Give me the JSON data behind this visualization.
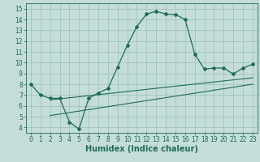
{
  "xlabel": "Humidex (Indice chaleur)",
  "xlim": [
    -0.5,
    23.5
  ],
  "ylim": [
    3.5,
    15.5
  ],
  "xticks": [
    0,
    1,
    2,
    3,
    4,
    5,
    6,
    7,
    8,
    9,
    10,
    11,
    12,
    13,
    14,
    15,
    16,
    17,
    18,
    19,
    20,
    21,
    22,
    23
  ],
  "yticks": [
    4,
    5,
    6,
    7,
    8,
    9,
    10,
    11,
    12,
    13,
    14,
    15
  ],
  "bg_color": "#c5ddd8",
  "grid_color": "#9dc4be",
  "line_color": "#1e6b5e",
  "curve1_x": [
    0,
    1,
    2,
    3,
    4,
    5,
    6,
    7,
    8,
    9,
    10,
    11,
    12,
    13,
    14,
    15,
    16,
    17,
    18,
    19,
    20,
    21,
    22,
    23
  ],
  "curve1_y": [
    8.0,
    7.0,
    6.7,
    6.7,
    4.5,
    3.85,
    6.7,
    7.2,
    7.6,
    9.6,
    11.6,
    13.35,
    14.5,
    14.75,
    14.5,
    14.45,
    14.0,
    10.8,
    9.4,
    9.5,
    9.5,
    8.95,
    9.5,
    9.85
  ],
  "line2_x": [
    2,
    23
  ],
  "line2_y": [
    6.55,
    8.6
  ],
  "line3_x": [
    2,
    23
  ],
  "line3_y": [
    5.1,
    8.0
  ],
  "tick_fontsize": 5.5,
  "label_fontsize": 7,
  "figsize": [
    3.2,
    2.0
  ],
  "dpi": 100
}
